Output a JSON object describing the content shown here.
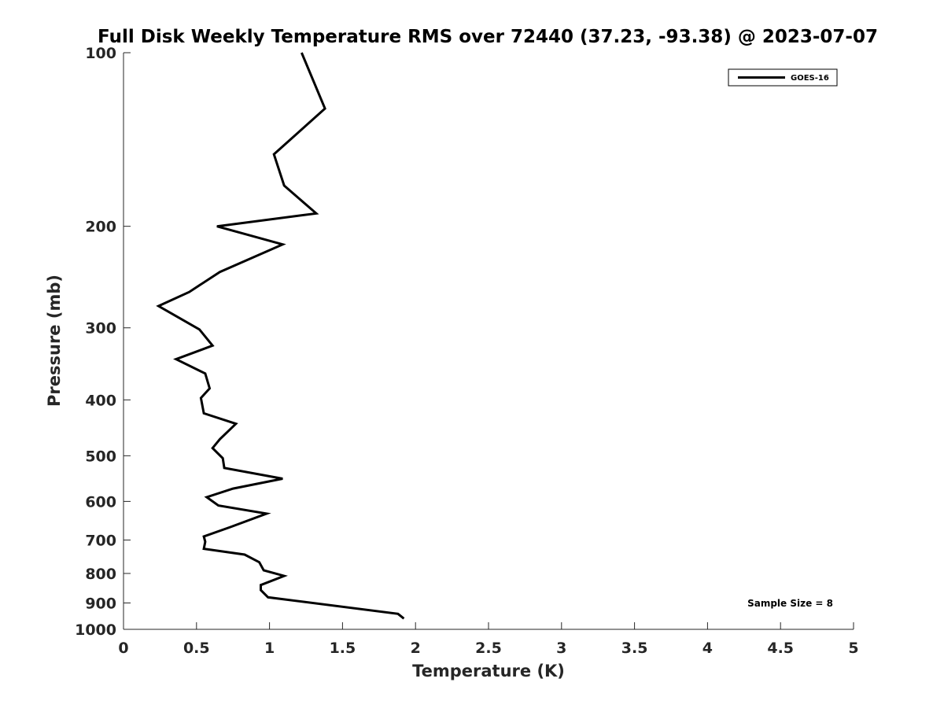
{
  "chart_data": {
    "type": "line",
    "title": "Full Disk Weekly Temperature RMS over 72440 (37.23, -93.38) @ 2023-07-07",
    "xlabel": "Temperature (K)",
    "ylabel": "Pressure (mb)",
    "xlim": [
      0,
      5
    ],
    "ylim": [
      100,
      1000
    ],
    "y_scale": "log",
    "y_direction": "reversed",
    "x_ticks": [
      0,
      0.5,
      1,
      1.5,
      2,
      2.5,
      3,
      3.5,
      4,
      4.5,
      5
    ],
    "x_tick_labels": [
      "0",
      "0.5",
      "1",
      "1.5",
      "2",
      "2.5",
      "3",
      "3.5",
      "4",
      "4.5",
      "5"
    ],
    "y_ticks": [
      100,
      200,
      300,
      400,
      500,
      600,
      700,
      800,
      900,
      1000
    ],
    "y_tick_labels": [
      "100",
      "200",
      "300",
      "400",
      "500",
      "600",
      "700",
      "800",
      "900",
      "1000"
    ],
    "grid": false,
    "legend_position": "top-right",
    "annotation": "Sample Size = 8",
    "series": [
      {
        "name": "GOES-16",
        "color": "#000000",
        "points": [
          {
            "x": 1.22,
            "y": 100
          },
          {
            "x": 1.38,
            "y": 125
          },
          {
            "x": 1.03,
            "y": 150
          },
          {
            "x": 1.1,
            "y": 170
          },
          {
            "x": 1.32,
            "y": 190
          },
          {
            "x": 0.64,
            "y": 200
          },
          {
            "x": 1.09,
            "y": 215
          },
          {
            "x": 0.66,
            "y": 240
          },
          {
            "x": 0.45,
            "y": 260
          },
          {
            "x": 0.24,
            "y": 275
          },
          {
            "x": 0.52,
            "y": 302
          },
          {
            "x": 0.61,
            "y": 322
          },
          {
            "x": 0.36,
            "y": 340
          },
          {
            "x": 0.56,
            "y": 360
          },
          {
            "x": 0.59,
            "y": 382
          },
          {
            "x": 0.53,
            "y": 397
          },
          {
            "x": 0.55,
            "y": 422
          },
          {
            "x": 0.77,
            "y": 440
          },
          {
            "x": 0.66,
            "y": 468
          },
          {
            "x": 0.61,
            "y": 485
          },
          {
            "x": 0.68,
            "y": 505
          },
          {
            "x": 0.69,
            "y": 525
          },
          {
            "x": 1.09,
            "y": 548
          },
          {
            "x": 0.75,
            "y": 570
          },
          {
            "x": 0.57,
            "y": 590
          },
          {
            "x": 0.65,
            "y": 610
          },
          {
            "x": 0.98,
            "y": 630
          },
          {
            "x": 0.73,
            "y": 665
          },
          {
            "x": 0.55,
            "y": 690
          },
          {
            "x": 0.56,
            "y": 705
          },
          {
            "x": 0.55,
            "y": 725
          },
          {
            "x": 0.83,
            "y": 742
          },
          {
            "x": 0.93,
            "y": 765
          },
          {
            "x": 0.96,
            "y": 790
          },
          {
            "x": 1.1,
            "y": 808
          },
          {
            "x": 0.94,
            "y": 838
          },
          {
            "x": 0.94,
            "y": 855
          },
          {
            "x": 0.99,
            "y": 880
          },
          {
            "x": 1.88,
            "y": 940
          },
          {
            "x": 1.92,
            "y": 958
          }
        ]
      }
    ]
  }
}
